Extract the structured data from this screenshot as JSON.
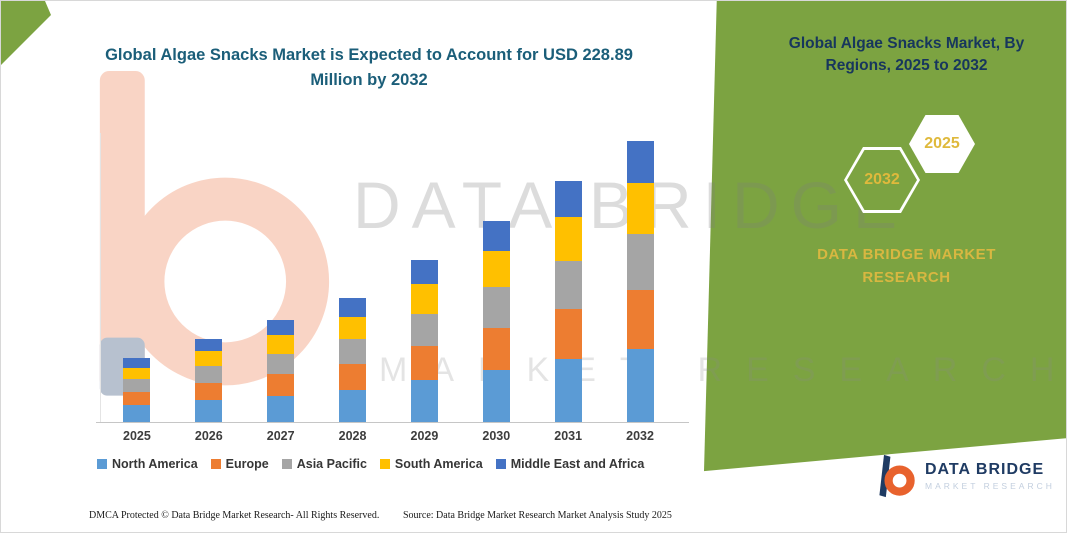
{
  "header": {
    "main_title": "Global Algae Snacks Market is Expected to Account for USD 228.89 Million by 2032",
    "panel_title": "Global Algae Snacks Market, By Regions, 2025 to 2032",
    "hexagon_left_year": "2032",
    "hexagon_right_year": "2025",
    "brand_text": "DATA BRIDGE MARKET RESEARCH"
  },
  "watermark": {
    "line1": "DATA BRIDGE",
    "line2": "MARKET RESEARCH"
  },
  "chart_data": {
    "type": "bar",
    "stacked": true,
    "title": "Global Algae Snacks Market is Expected to Account for USD 228.89 Million by 2032",
    "unit": "USD Million",
    "categories": [
      "2025",
      "2026",
      "2027",
      "2028",
      "2029",
      "2030",
      "2031",
      "2032"
    ],
    "series": [
      {
        "name": "North America",
        "color": "#5B9BD5",
        "values": [
          13.5,
          17.7,
          21.6,
          26.3,
          34.3,
          42.6,
          51.0,
          59.5
        ]
      },
      {
        "name": "Europe",
        "color": "#ED7D31",
        "values": [
          10.9,
          14.3,
          17.4,
          21.2,
          27.7,
          34.4,
          41.2,
          48.1
        ]
      },
      {
        "name": "Asia Pacific",
        "color": "#A5A5A5",
        "values": [
          10.4,
          13.6,
          16.6,
          20.2,
          26.4,
          32.8,
          39.2,
          45.8
        ]
      },
      {
        "name": "South America",
        "color": "#FFC000",
        "values": [
          9.4,
          12.2,
          14.9,
          18.2,
          23.8,
          29.5,
          35.3,
          41.2
        ]
      },
      {
        "name": "Middle East and Africa",
        "color": "#4472C4",
        "values": [
          7.8,
          10.2,
          12.4,
          15.2,
          19.8,
          24.6,
          29.4,
          34.29
        ]
      }
    ],
    "ylim": [
      0,
      240
    ],
    "grid": false,
    "legend_position": "bottom",
    "annotations": [
      "Total market value reaches USD 228.89 Million in 2032"
    ]
  },
  "footer": {
    "left": "DMCA Protected © Data Bridge Market Research-  All Rights Reserved.",
    "source": "Source: Data Bridge Market Research  Market Analysis Study 2025"
  },
  "logo": {
    "name": "DATA BRIDGE",
    "subtext": "MARKET RESEARCH"
  },
  "colors": {
    "panel_green": "#7CA341",
    "panel_navy": "#17365D",
    "gold": "#D8B741",
    "title_teal": "#1B5E79"
  }
}
